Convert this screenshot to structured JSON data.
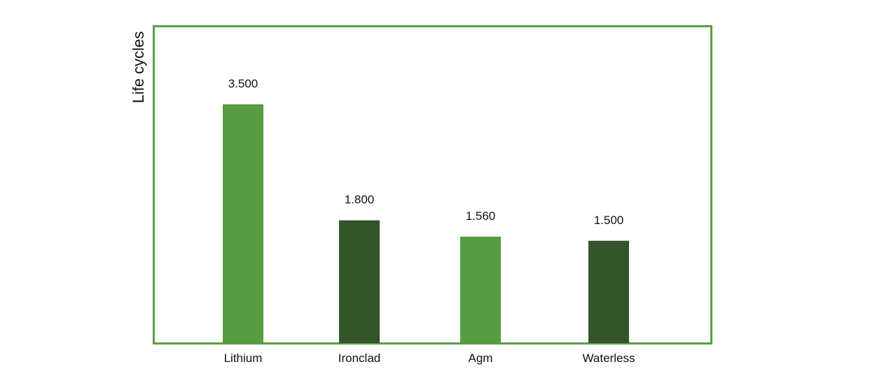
{
  "chart_data": {
    "type": "bar",
    "title": "",
    "xlabel": "",
    "ylabel": "Life cycles",
    "categories": [
      "Lithium",
      "Ironclad",
      "Agm",
      "Waterless"
    ],
    "values": [
      3500,
      1800,
      1560,
      1500
    ],
    "value_labels": [
      "3.500",
      "1.800",
      "1.560",
      "1.500"
    ],
    "bar_colors": [
      "#569c40",
      "#33542a",
      "#569c40",
      "#33542a"
    ],
    "frame_color": "#58a045",
    "grid": false,
    "legend": "none"
  }
}
